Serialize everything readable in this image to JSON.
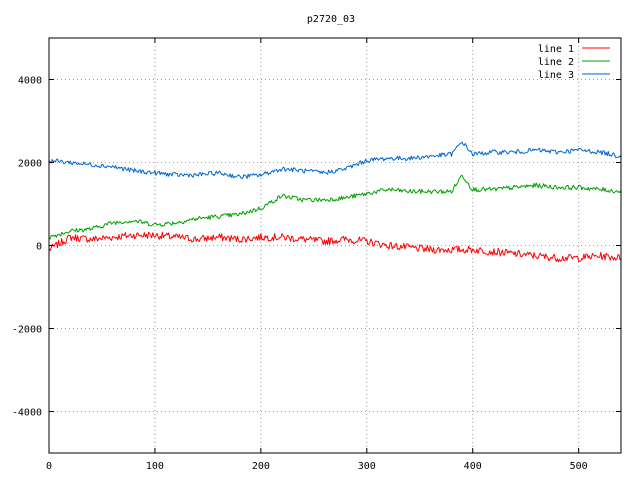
{
  "chart_data": {
    "type": "line",
    "title": "p2720_03",
    "xlabel": "",
    "ylabel": "",
    "xlim": [
      0,
      540
    ],
    "ylim": [
      -5000,
      5000
    ],
    "xticks": [
      0,
      100,
      200,
      300,
      400,
      500
    ],
    "yticks": [
      -4000,
      -2000,
      0,
      2000,
      4000
    ],
    "grid": true,
    "legend_position": "top-right",
    "series": [
      {
        "name": "line 1",
        "color": "#ff0000",
        "x": [
          0,
          20,
          40,
          60,
          80,
          100,
          120,
          140,
          160,
          180,
          200,
          220,
          240,
          260,
          280,
          300,
          320,
          340,
          360,
          380,
          400,
          420,
          440,
          460,
          480,
          500,
          520,
          540
        ],
        "values": [
          -100,
          200,
          150,
          200,
          250,
          250,
          200,
          150,
          200,
          150,
          200,
          200,
          150,
          100,
          150,
          100,
          0,
          -50,
          -100,
          -100,
          -100,
          -150,
          -200,
          -250,
          -300,
          -300,
          -250,
          -300
        ]
      },
      {
        "name": "line 2",
        "color": "#00a000",
        "x": [
          0,
          20,
          40,
          60,
          80,
          100,
          120,
          140,
          160,
          180,
          200,
          220,
          240,
          260,
          280,
          300,
          320,
          340,
          360,
          380,
          390,
          400,
          420,
          440,
          460,
          480,
          500,
          520,
          540
        ],
        "values": [
          200,
          350,
          400,
          550,
          600,
          500,
          550,
          650,
          700,
          750,
          900,
          1200,
          1100,
          1100,
          1150,
          1250,
          1350,
          1300,
          1300,
          1300,
          1700,
          1350,
          1350,
          1400,
          1450,
          1400,
          1400,
          1350,
          1300
        ]
      },
      {
        "name": "line 3",
        "color": "#0066cc",
        "x": [
          0,
          20,
          40,
          60,
          80,
          100,
          120,
          140,
          160,
          180,
          200,
          220,
          240,
          260,
          280,
          300,
          320,
          340,
          360,
          380,
          390,
          400,
          420,
          440,
          460,
          480,
          500,
          520,
          540
        ],
        "values": [
          2050,
          2000,
          1950,
          1900,
          1800,
          1750,
          1700,
          1700,
          1750,
          1650,
          1700,
          1850,
          1800,
          1750,
          1850,
          2050,
          2100,
          2100,
          2150,
          2200,
          2500,
          2200,
          2250,
          2250,
          2300,
          2250,
          2300,
          2250,
          2150
        ]
      }
    ]
  }
}
